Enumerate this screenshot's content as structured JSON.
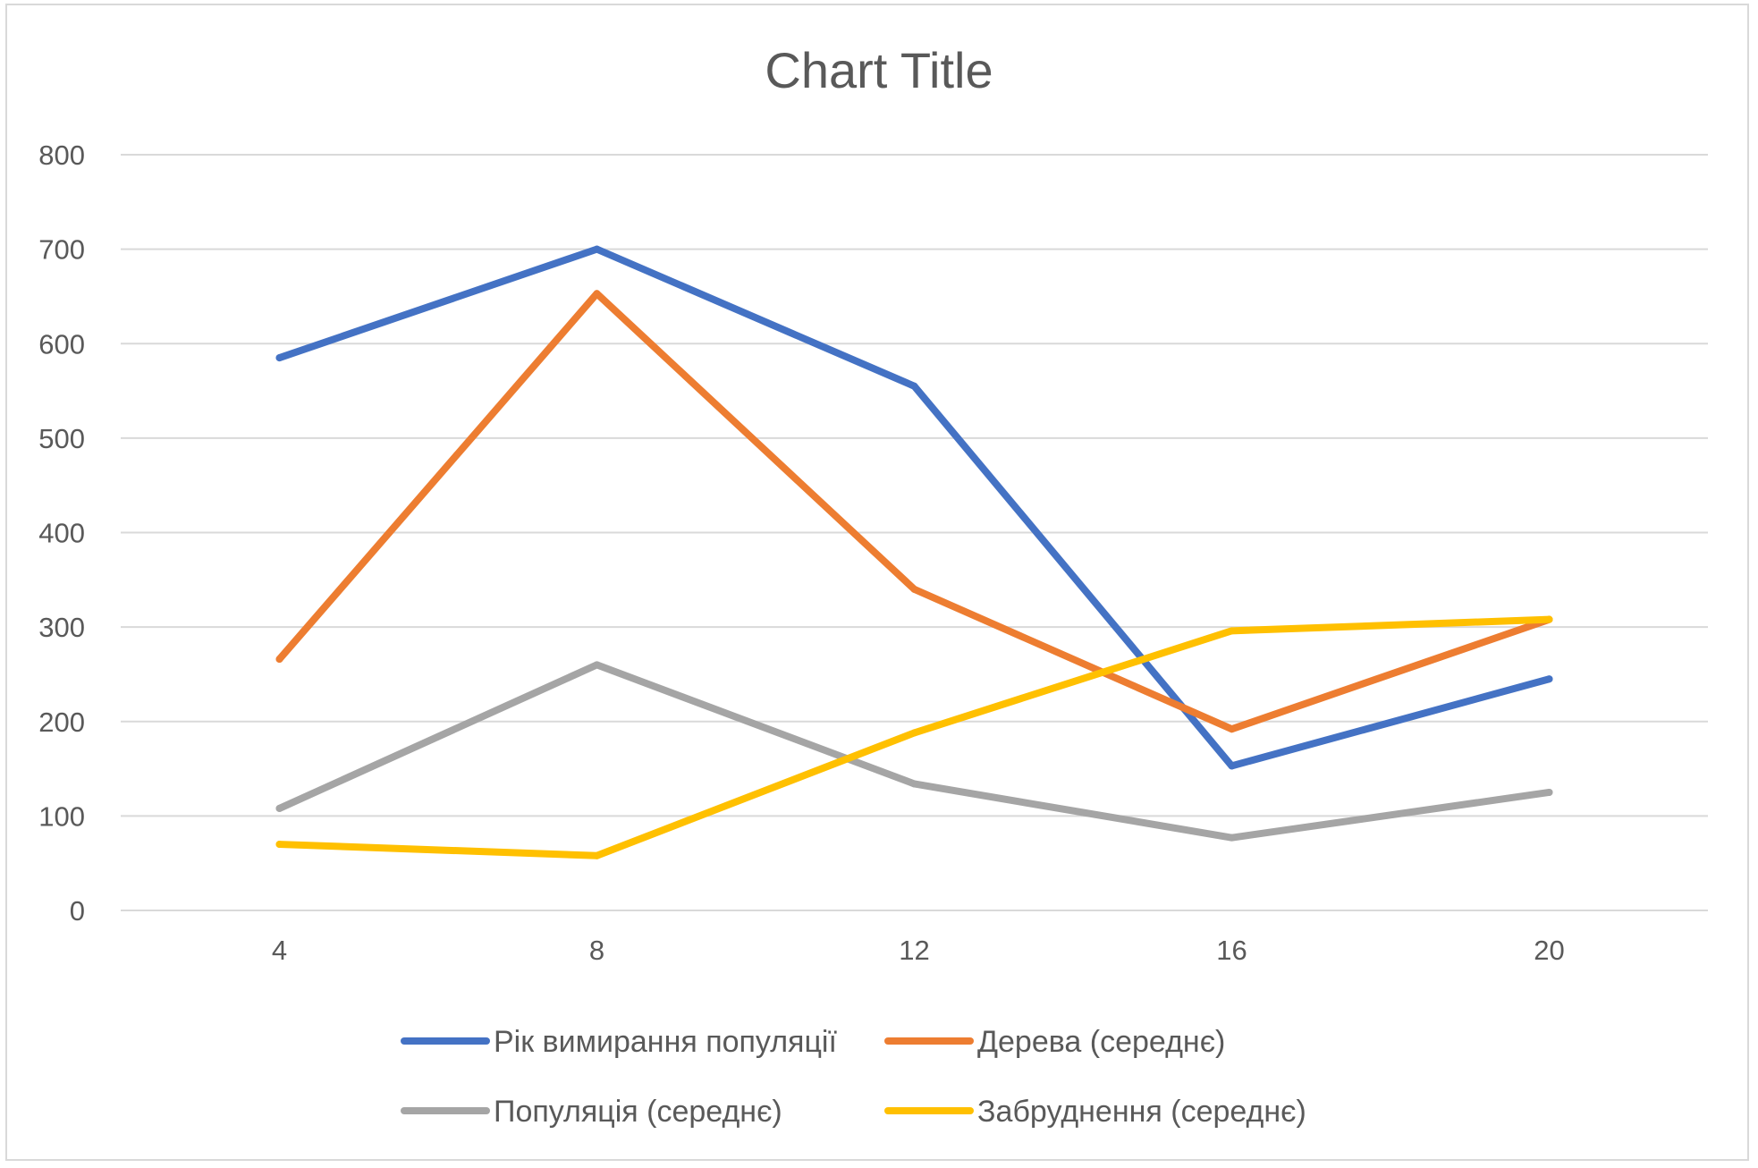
{
  "chart_data": {
    "type": "line",
    "title": "Chart Title",
    "xlabel": "",
    "ylabel": "",
    "categories": [
      "4",
      "8",
      "12",
      "16",
      "20"
    ],
    "ylim": [
      0,
      800
    ],
    "yticks": [
      "0",
      "100",
      "200",
      "300",
      "400",
      "500",
      "600",
      "700",
      "800"
    ],
    "grid": true,
    "legend_position": "bottom",
    "series": [
      {
        "name": "Рік вимирання популяції",
        "color": "#4472C4",
        "values": [
          585,
          700,
          555,
          153,
          245
        ]
      },
      {
        "name": "Дерева (середнє)",
        "color": "#ED7D31",
        "values": [
          266,
          653,
          340,
          192,
          308
        ]
      },
      {
        "name": "Популяція (середнє)",
        "color": "#A5A5A5",
        "values": [
          108,
          260,
          134,
          77,
          125
        ]
      },
      {
        "name": "Забруднення (середнє)",
        "color": "#FFC000",
        "values": [
          70,
          58,
          188,
          296,
          308
        ]
      }
    ]
  }
}
